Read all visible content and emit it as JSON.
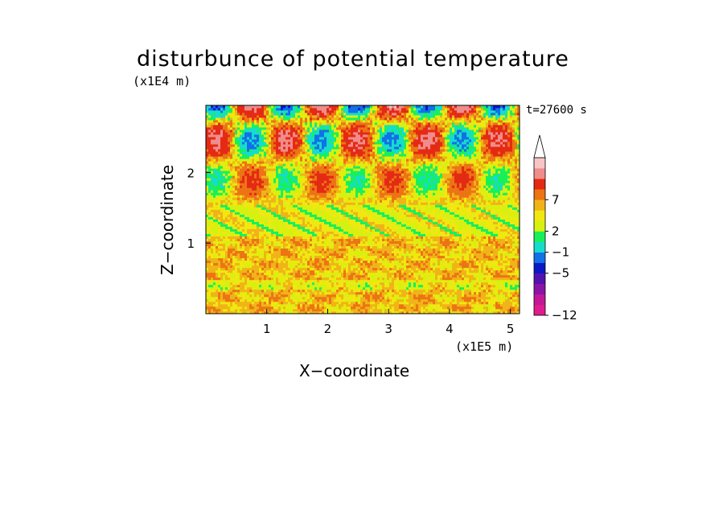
{
  "chart_data": {
    "type": "heatmap",
    "title": "disturbunce of potential temperature",
    "xlabel": "X−coordinate",
    "ylabel": "Z−coordinate",
    "x_unit": "(x1E5 m)",
    "y_unit": "(x1E4 m)",
    "time_label": "t=27600 s",
    "xlim": [
      0,
      5.15
    ],
    "ylim": [
      0,
      2.95
    ],
    "x_ticks": [
      "1",
      "2",
      "3",
      "4",
      "5"
    ],
    "y_ticks": [
      "1",
      "2"
    ],
    "colorbar": {
      "ticks": [
        "7",
        "2",
        "−1",
        "−5",
        "−12"
      ],
      "colors": [
        "#e11c8e",
        "#c21898",
        "#8a14a6",
        "#5212b0",
        "#0a18c6",
        "#1270e8",
        "#16dccc",
        "#18f05a",
        "#d8f010",
        "#f0e810",
        "#f0b418",
        "#ec7414",
        "#e42a14",
        "#f08c8c",
        "#f8c4c4"
      ],
      "extend": "max"
    }
  }
}
